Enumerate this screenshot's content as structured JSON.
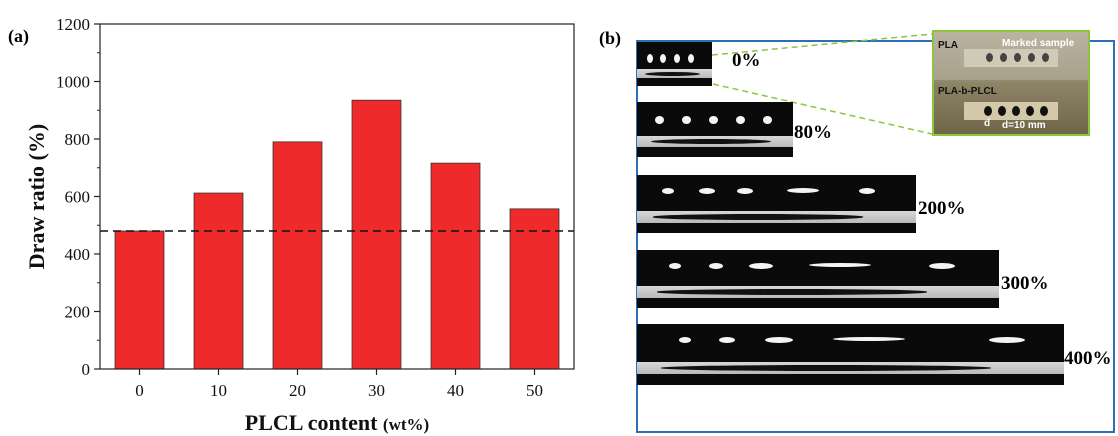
{
  "panel_a": {
    "label": "(a)"
  },
  "panel_b": {
    "label": "(b)",
    "strains": [
      "0%",
      "80%",
      "200%",
      "300%",
      "400%"
    ],
    "inset": {
      "pla_label": "PLA",
      "marked_label": "Marked sample",
      "plcl_label": "PLA-b-PLCL",
      "d_label": "d",
      "spacing_label": "d=10 mm"
    },
    "colors": {
      "frame": "#2e6fb5",
      "inset_border": "#8cc63f"
    }
  },
  "chart_data": {
    "type": "bar",
    "categories": [
      "0",
      "10",
      "20",
      "30",
      "40",
      "50"
    ],
    "values": [
      480,
      612,
      790,
      935,
      716,
      557
    ],
    "xlabel": "PLCL content",
    "xlabel_unit": "(wt%)",
    "ylabel": "Draw ratio (%)",
    "ylim": [
      0,
      1200
    ],
    "yticks": [
      "0",
      "200",
      "400",
      "600",
      "800",
      "1000",
      "1200"
    ],
    "reference_line": 480,
    "bar_color": "#ee2a2a",
    "grid": false
  }
}
